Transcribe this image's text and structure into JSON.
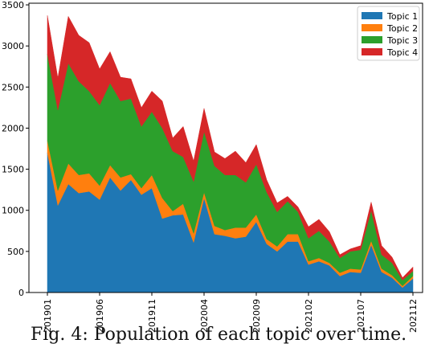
{
  "chart_data": {
    "type": "area",
    "stacked": true,
    "x": [
      "201901",
      "201902",
      "201903",
      "201904",
      "201905",
      "201906",
      "201907",
      "201908",
      "201909",
      "201910",
      "201911",
      "201912",
      "202001",
      "202002",
      "202003",
      "202004",
      "202005",
      "202006",
      "202007",
      "202008",
      "202009",
      "202010",
      "202011",
      "202012",
      "202101",
      "202102",
      "202103",
      "202104",
      "202105",
      "202106",
      "202107",
      "202108",
      "202109",
      "202110",
      "202111",
      "202112"
    ],
    "xticks": [
      "201901",
      "201906",
      "201911",
      "202004",
      "202009",
      "202102",
      "202107",
      "202112"
    ],
    "yticks": [
      0,
      500,
      1000,
      1500,
      2000,
      2500,
      3000,
      3500
    ],
    "ylim": [
      0,
      3520
    ],
    "grid": false,
    "legend_position": "top-right",
    "series": [
      {
        "name": "Topic 1",
        "color": "#1f77b4",
        "values": [
          1700,
          1060,
          1320,
          1210,
          1230,
          1130,
          1400,
          1240,
          1370,
          1190,
          1270,
          900,
          940,
          950,
          610,
          1150,
          710,
          690,
          660,
          680,
          860,
          590,
          500,
          620,
          620,
          340,
          380,
          330,
          200,
          250,
          240,
          580,
          250,
          180,
          60,
          170
        ]
      },
      {
        "name": "Topic 2",
        "color": "#ff7f0e",
        "values": [
          150,
          180,
          250,
          220,
          220,
          170,
          150,
          160,
          70,
          80,
          160,
          250,
          50,
          130,
          110,
          70,
          100,
          70,
          130,
          110,
          90,
          60,
          60,
          90,
          90,
          40,
          40,
          30,
          40,
          40,
          40,
          50,
          40,
          30,
          20,
          30
        ]
      },
      {
        "name": "Topic 3",
        "color": "#2ca02c",
        "values": [
          1050,
          980,
          1220,
          1140,
          1000,
          980,
          1000,
          930,
          920,
          750,
          770,
          850,
          730,
          570,
          630,
          740,
          730,
          670,
          640,
          550,
          610,
          570,
          420,
          400,
          270,
          280,
          330,
          260,
          180,
          210,
          240,
          370,
          170,
          150,
          70,
          60
        ]
      },
      {
        "name": "Topic 4",
        "color": "#d62728",
        "values": [
          470,
          390,
          570,
          560,
          590,
          440,
          380,
          290,
          240,
          230,
          250,
          330,
          160,
          370,
          250,
          280,
          170,
          200,
          290,
          240,
          240,
          150,
          110,
          60,
          60,
          140,
          140,
          120,
          40,
          30,
          50,
          100,
          110,
          70,
          30,
          50
        ]
      }
    ]
  },
  "caption": "Fig. 4: Population of each topic over time."
}
